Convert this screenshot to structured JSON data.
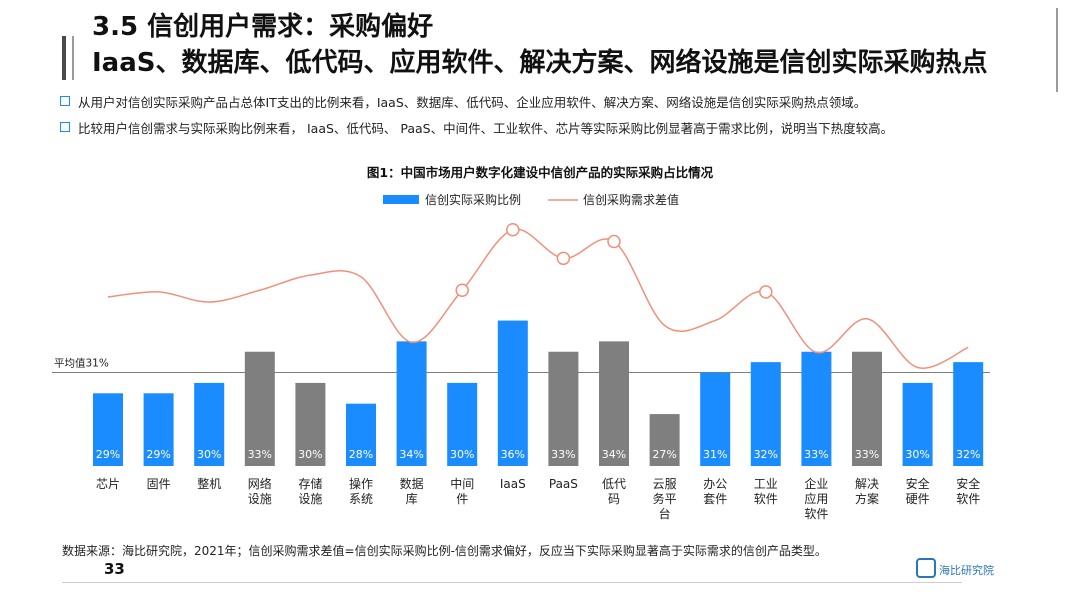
{
  "header": {
    "title": "3.5 信创用户需求：采购偏好",
    "subtitle": "IaaS、数据库、低代码、应用软件、解决方案、网络设施是信创实际采购热点"
  },
  "bullets": [
    "从用户对信创实际采购产品占总体IT支出的比例来看，IaaS、数据库、低代码、企业应用软件、解决方案、网络设施是信创实际采购热点领域。",
    "比较用户信创需求与实际采购比例来看， IaaS、低代码、 PaaS、中间件、工业软件、芯片等实际采购比例显著高于需求比例，说明当下热度较高。"
  ],
  "colors": {
    "bar_blue": "#1a8cff",
    "bar_gray": "#7f7f7f",
    "line": "#f0907a",
    "avg_line": "#7f7f7f",
    "bullet_box": "#1a8cff"
  },
  "chart_data": {
    "type": "bar",
    "title": "图1：中国市场用户数字化建设中信创产品的实际采购占比情况",
    "legend": [
      "信创实际采购比例",
      "信创采购需求差值"
    ],
    "legend_position": "top",
    "categories": [
      "芯片",
      "固件",
      "整机",
      "网络设施",
      "存储设施",
      "操作系统",
      "数据库",
      "中间件",
      "IaaS",
      "PaaS",
      "低代码",
      "云服务平台",
      "办公套件",
      "工业软件",
      "企业应用软件",
      "解决方案",
      "安全硬件",
      "安全软件"
    ],
    "category_lines": [
      [
        "芯片"
      ],
      [
        "固件"
      ],
      [
        "整机"
      ],
      [
        "网络",
        "设施"
      ],
      [
        "存储",
        "设施"
      ],
      [
        "操作",
        "系统"
      ],
      [
        "数据",
        "库"
      ],
      [
        "中间",
        "件"
      ],
      [
        "IaaS"
      ],
      [
        "PaaS"
      ],
      [
        "低代",
        "码"
      ],
      [
        "云服",
        "务平",
        "台"
      ],
      [
        "办公",
        "套件"
      ],
      [
        "工业",
        "软件"
      ],
      [
        "企业",
        "应用",
        "软件"
      ],
      [
        "解决",
        "方案"
      ],
      [
        "安全",
        "硬件"
      ],
      [
        "安全",
        "软件"
      ]
    ],
    "series": [
      {
        "name": "信创实际采购比例",
        "type": "bar",
        "values": [
          29,
          29,
          30,
          33,
          30,
          28,
          34,
          30,
          36,
          33,
          34,
          27,
          31,
          32,
          33,
          33,
          30,
          32
        ],
        "labels": [
          "29%",
          "29%",
          "30%",
          "33%",
          "30%",
          "28%",
          "34%",
          "30%",
          "36%",
          "33%",
          "34%",
          "27%",
          "31%",
          "32%",
          "33%",
          "33%",
          "30%",
          "32%"
        ],
        "colors": [
          "blue",
          "blue",
          "blue",
          "gray",
          "gray",
          "blue",
          "blue",
          "blue",
          "blue",
          "gray",
          "gray",
          "gray",
          "blue",
          "blue",
          "blue",
          "gray",
          "blue",
          "blue"
        ]
      },
      {
        "name": "信创采购需求差值",
        "type": "line",
        "values": [
          10.3,
          10.6,
          10.0,
          10.7,
          11.6,
          11.5,
          7.6,
          10.7,
          14.3,
          12.6,
          13.6,
          8.6,
          8.9,
          10.6,
          7.0,
          9.0,
          6.1,
          7.3
        ],
        "markers": [
          false,
          false,
          false,
          false,
          false,
          false,
          false,
          true,
          true,
          true,
          true,
          false,
          false,
          true,
          false,
          false,
          false,
          false
        ]
      }
    ],
    "average": {
      "label": "平均值31%",
      "value": 31
    },
    "ylim": [
      22,
      37.5
    ],
    "grid": false
  },
  "footer": {
    "source": "数据来源：海比研究院，2021年；信创采购需求差值=信创实际采购比例-信创需求偏好，反应当下实际采购显著高于实际需求的信创产品类型。",
    "page_number": "33",
    "logo_text": "海比研究院"
  }
}
